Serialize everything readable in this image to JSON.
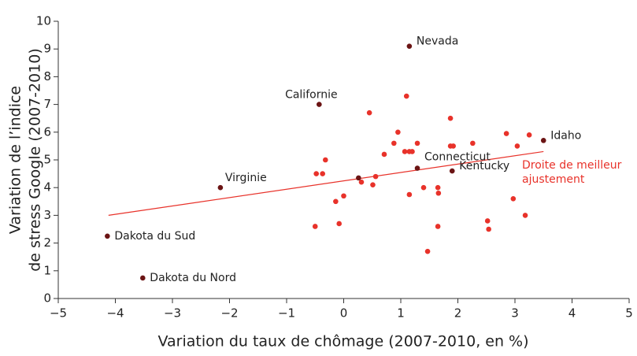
{
  "chart_data": {
    "type": "scatter",
    "x_label": "Variation du taux de chômage (2007-2010, en %)",
    "y_label": [
      "Variation de l’indice",
      "de stress Google (2007-2010)"
    ],
    "xlim": [
      -5,
      5
    ],
    "ylim": [
      0,
      10
    ],
    "xticks": [
      {
        "value": -5,
        "label": "−5"
      },
      {
        "value": -4,
        "label": "−4"
      },
      {
        "value": -3,
        "label": "−3"
      },
      {
        "value": -2,
        "label": "−2"
      },
      {
        "value": -1,
        "label": "−1"
      },
      0,
      1,
      2,
      3,
      4,
      5
    ],
    "yticks": [
      0,
      1,
      2,
      3,
      4,
      5,
      6,
      7,
      8,
      9,
      10
    ],
    "series": [
      {
        "color": "#e8322a",
        "x": [
          0.45,
          1.1,
          1.87,
          2.85,
          0.95,
          0.88,
          1.29,
          0.71,
          1.07,
          1.15,
          1.2,
          1.87,
          1.92,
          2.26,
          3.04,
          3.25,
          -0.32,
          -0.48,
          -0.37,
          0.31,
          0.56,
          0.51,
          1.15,
          1.4,
          1.65,
          1.66,
          0,
          -0.14,
          2.97,
          3.18,
          2.52,
          2.54,
          -0.5,
          -0.08,
          1.65,
          1.47
        ],
        "values": [
          6.7,
          7.3,
          6.5,
          5.95,
          6.0,
          5.6,
          5.6,
          5.2,
          5.3,
          5.3,
          5.3,
          5.5,
          5.5,
          5.6,
          5.5,
          5.9,
          5.0,
          4.5,
          4.5,
          4.2,
          4.4,
          4.1,
          3.75,
          4.0,
          4.0,
          3.8,
          3.7,
          3.5,
          3.6,
          3.0,
          2.8,
          2.5,
          2.6,
          2.7,
          2.6,
          1.7
        ]
      },
      {
        "color": "#6b1414",
        "x": [
          1.15,
          -0.43,
          -2.16,
          -4.14,
          -3.52,
          3.5,
          1.29,
          1.9,
          0.26
        ],
        "values": [
          9.1,
          7.0,
          4.0,
          2.25,
          0.74,
          5.7,
          4.7,
          4.6,
          4.35
        ],
        "point_labels": [
          "Nevada",
          "Californie",
          "Virginie",
          "Dakota du Sud",
          "Dakota du Nord",
          "Idaho",
          "Connecticut",
          "Kentucky",
          null
        ]
      }
    ],
    "fit_line": {
      "color": "#e8322a",
      "x": [
        -4.12,
        3.5
      ],
      "values": [
        3.0,
        5.3
      ],
      "label": [
        "Droite de meilleur",
        "ajustement"
      ]
    }
  }
}
